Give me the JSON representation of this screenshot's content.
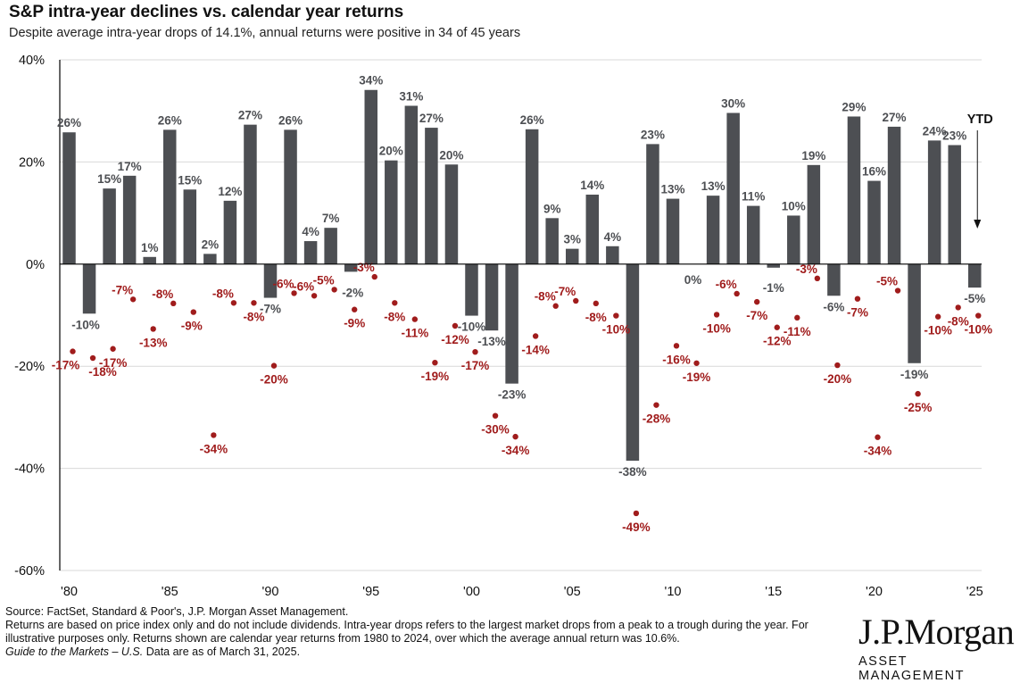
{
  "title": "S&P intra-year declines vs. calendar year returns",
  "subtitle": "Despite average intra-year drops of 14.1%, annual returns were positive in 34 of 45 years",
  "colors": {
    "bar": "#4d4f53",
    "dot": "#a01c1c",
    "bar_label": "#4d4f53",
    "dot_label": "#a01c1c",
    "grid": "#d9d9d9",
    "axis": "#000000"
  },
  "chart_data": {
    "type": "bar",
    "title": "S&P intra-year declines vs. calendar year returns",
    "ylim": [
      -60,
      40
    ],
    "yticks": [
      40,
      20,
      0,
      -20,
      -40,
      -60
    ],
    "ytick_labels": [
      "40%",
      "20%",
      "0%",
      "-20%",
      "-40%",
      "-60%"
    ],
    "xtick_labels": [
      {
        "year": 1980,
        "label": "'80"
      },
      {
        "year": 1985,
        "label": "'85"
      },
      {
        "year": 1990,
        "label": "'90"
      },
      {
        "year": 1995,
        "label": "'95"
      },
      {
        "year": 2000,
        "label": "'00"
      },
      {
        "year": 2005,
        "label": "'05"
      },
      {
        "year": 2010,
        "label": "'10"
      },
      {
        "year": 2015,
        "label": "'15"
      },
      {
        "year": 2020,
        "label": "'20"
      },
      {
        "year": 2025,
        "label": "'25"
      }
    ],
    "series": [
      {
        "name": "Calendar year return",
        "type": "bar",
        "years": [
          1980,
          1981,
          1982,
          1983,
          1984,
          1985,
          1986,
          1987,
          1988,
          1989,
          1990,
          1991,
          1992,
          1993,
          1994,
          1995,
          1996,
          1997,
          1998,
          1999,
          2000,
          2001,
          2002,
          2003,
          2004,
          2005,
          2006,
          2007,
          2008,
          2009,
          2010,
          2011,
          2012,
          2013,
          2014,
          2015,
          2016,
          2017,
          2018,
          2019,
          2020,
          2021,
          2022,
          2023,
          2024,
          2025
        ],
        "values": [
          25.8,
          -9.7,
          14.8,
          17.3,
          1.4,
          26.3,
          14.6,
          2.0,
          12.4,
          27.3,
          -6.6,
          26.3,
          4.5,
          7.1,
          -1.5,
          34.1,
          20.3,
          31.0,
          26.7,
          19.5,
          -10.1,
          -13.0,
          -23.4,
          26.4,
          9.0,
          3.0,
          13.6,
          3.5,
          -38.5,
          23.5,
          12.8,
          0.0,
          13.4,
          29.6,
          11.4,
          -0.7,
          9.5,
          19.4,
          -6.2,
          28.9,
          16.3,
          26.9,
          -19.4,
          24.2,
          23.3,
          -4.6
        ],
        "labels": [
          "26%",
          "-10%",
          "15%",
          "17%",
          "1%",
          "26%",
          "15%",
          "2%",
          "12%",
          "27%",
          "-7%",
          "26%",
          "4%",
          "7%",
          "-2%",
          "34%",
          "20%",
          "31%",
          "27%",
          "20%",
          "-10%",
          "-13%",
          "-23%",
          "26%",
          "9%",
          "3%",
          "14%",
          "4%",
          "-38%",
          "23%",
          "13%",
          "0%",
          "13%",
          "30%",
          "11%",
          "-1%",
          "10%",
          "19%",
          "-6%",
          "29%",
          "16%",
          "27%",
          "-19%",
          "24%",
          "23%",
          "-5%"
        ]
      },
      {
        "name": "Intra-year decline",
        "type": "scatter",
        "years": [
          1980,
          1981,
          1982,
          1983,
          1984,
          1985,
          1986,
          1987,
          1988,
          1989,
          1990,
          1991,
          1992,
          1993,
          1994,
          1995,
          1996,
          1997,
          1998,
          1999,
          2000,
          2001,
          2002,
          2003,
          2004,
          2005,
          2006,
          2007,
          2008,
          2009,
          2010,
          2011,
          2012,
          2013,
          2014,
          2015,
          2016,
          2017,
          2018,
          2019,
          2020,
          2021,
          2022,
          2023,
          2024,
          2025
        ],
        "values": [
          -17.1,
          -18.4,
          -16.6,
          -6.9,
          -12.7,
          -7.7,
          -9.4,
          -33.5,
          -7.6,
          -7.6,
          -19.9,
          -5.7,
          -6.2,
          -5.0,
          -8.9,
          -2.5,
          -7.6,
          -10.8,
          -19.3,
          -12.1,
          -17.2,
          -29.7,
          -33.8,
          -14.1,
          -8.2,
          -7.2,
          -7.7,
          -10.1,
          -48.8,
          -27.6,
          -16.0,
          -19.4,
          -9.9,
          -5.8,
          -7.4,
          -12.4,
          -10.5,
          -2.8,
          -19.8,
          -6.8,
          -33.9,
          -5.2,
          -25.4,
          -10.3,
          -8.5,
          -10.1
        ],
        "labels": [
          "-17%",
          "-18%",
          "-17%",
          "-7%",
          "-13%",
          "-8%",
          "-9%",
          "-34%",
          "-8%",
          "-8%",
          "-20%",
          "-6%",
          "-6%",
          "-5%",
          "-9%",
          "-3%",
          "-8%",
          "-11%",
          "-19%",
          "-12%",
          "-17%",
          "-30%",
          "-34%",
          "-14%",
          "-8%",
          "-7%",
          "-8%",
          "-10%",
          "-49%",
          "-28%",
          "-16%",
          "-19%",
          "-10%",
          "-6%",
          "-7%",
          "-12%",
          "-11%",
          "-3%",
          "-20%",
          "-7%",
          "-34%",
          "-5%",
          "-25%",
          "-10%",
          "-8%",
          "-10%"
        ]
      }
    ],
    "annotations": [
      {
        "text": "YTD",
        "year": 2025
      }
    ]
  },
  "footer": {
    "source": "Source: FactSet, Standard & Poor's, J.P. Morgan Asset Management.",
    "note": "Returns are based on price index only and do not include dividends. Intra-year drops refers to the largest market drops from a peak to a trough during the year. For illustrative purposes only. Returns shown are calendar year returns from 1980 to 2024, over which the average annual return was 10.6%.",
    "guide": "Guide to the Markets – U.S.",
    "date": " Data are as of March 31, 2025."
  },
  "logo": {
    "brand": "J.P.Morgan",
    "sub": "ASSET MANAGEMENT"
  }
}
